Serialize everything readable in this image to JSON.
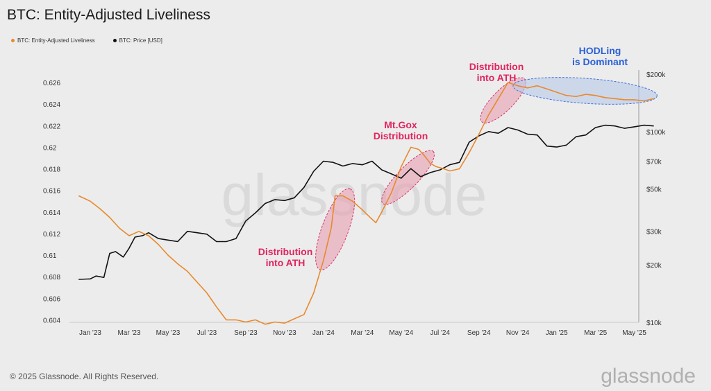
{
  "page": {
    "title": "BTC: Entity-Adjusted Liveliness",
    "copyright": "© 2025 Glassnode. All Rights Reserved.",
    "brand": "glassnode",
    "watermark": "glassnode"
  },
  "colors": {
    "liveliness": "#e8892d",
    "price": "#111111",
    "highlight_fill": "#e7a0b0",
    "highlight_stroke": "#d8336a",
    "hodl_fill": "#b9c9ea",
    "hodl_stroke": "#3a6fd8",
    "annotation_red": "#e0245e",
    "annotation_blue": "#2a5fd8"
  },
  "chart_data": {
    "type": "line",
    "title": "BTC: Entity-Adjusted Liveliness",
    "legend": [
      "BTC: Entity-Adjusted Liveliness",
      "BTC: Price [USD]"
    ],
    "x_ticks": [
      "Jan '23",
      "Mar '23",
      "May '23",
      "Jul '23",
      "Sep '23",
      "Nov '23",
      "Jan '24",
      "Mar '24",
      "May '24",
      "Jul '24",
      "Sep '24",
      "Nov '24",
      "Jan '25",
      "Mar '25",
      "May '25"
    ],
    "x_range_months": [
      0,
      29.3
    ],
    "y_left": {
      "label": "",
      "range": [
        0.603,
        0.626
      ],
      "ticks": [
        "0.604",
        "0.606",
        "0.608",
        "0.61",
        "0.612",
        "0.614",
        "0.616",
        "0.618",
        "0.62",
        "0.622",
        "0.624",
        "0.626"
      ]
    },
    "y_right": {
      "label": "",
      "scale": "log",
      "range": [
        10000,
        200000
      ],
      "ticks": [
        "$10k",
        "$20k",
        "$30k",
        "$50k",
        "$70k",
        "$100k",
        "$200k"
      ]
    },
    "series": [
      {
        "name": "BTC: Entity-Adjusted Liveliness",
        "axis": "left",
        "x": [
          -0.6,
          0.0,
          0.5,
          1.0,
          1.5,
          2.0,
          2.5,
          3.0,
          3.5,
          4.0,
          4.5,
          5.0,
          5.5,
          6.0,
          6.5,
          7.0,
          7.5,
          8.0,
          8.5,
          9.0,
          9.5,
          10.0,
          10.5,
          11.0,
          11.5,
          12.0,
          12.4,
          12.6,
          13.0,
          13.5,
          14.0,
          14.4,
          14.7,
          15.0,
          15.5,
          16.0,
          16.5,
          16.9,
          17.2,
          17.5,
          17.8,
          18.2,
          18.5,
          19.0,
          19.5,
          20.0,
          20.5,
          21.0,
          21.5,
          22.0,
          22.5,
          23.0,
          23.5,
          24.0,
          24.5,
          25.0,
          25.5,
          26.0,
          26.5,
          27.0,
          27.5,
          28.0,
          28.5,
          29.0
        ],
        "values": [
          0.6155,
          0.615,
          0.6143,
          0.6135,
          0.6125,
          0.6118,
          0.6122,
          0.6118,
          0.611,
          0.61,
          0.6092,
          0.6085,
          0.6075,
          0.6065,
          0.6052,
          0.604,
          0.604,
          0.6038,
          0.604,
          0.6036,
          0.6038,
          0.6037,
          0.6041,
          0.6045,
          0.6065,
          0.6095,
          0.6125,
          0.6155,
          0.6155,
          0.615,
          0.6142,
          0.6135,
          0.613,
          0.614,
          0.6158,
          0.6182,
          0.62,
          0.6198,
          0.6192,
          0.6185,
          0.6182,
          0.618,
          0.6178,
          0.618,
          0.6195,
          0.6212,
          0.623,
          0.6245,
          0.626,
          0.6257,
          0.6255,
          0.6257,
          0.6254,
          0.6251,
          0.6248,
          0.6247,
          0.6249,
          0.6248,
          0.6246,
          0.6245,
          0.6244,
          0.6244,
          0.6243,
          0.6245
        ]
      },
      {
        "name": "BTC: Price [USD]",
        "axis": "right",
        "x": [
          -0.6,
          0.0,
          0.3,
          0.7,
          1.0,
          1.3,
          1.7,
          2.0,
          2.3,
          2.7,
          3.0,
          3.5,
          4.0,
          4.5,
          5.0,
          5.5,
          6.0,
          6.5,
          7.0,
          7.5,
          8.0,
          8.5,
          9.0,
          9.5,
          10.0,
          10.5,
          11.0,
          11.5,
          12.0,
          12.5,
          13.0,
          13.5,
          14.0,
          14.5,
          15.0,
          15.5,
          16.0,
          16.5,
          17.0,
          17.5,
          18.0,
          18.5,
          19.0,
          19.5,
          20.0,
          20.5,
          21.0,
          21.5,
          22.0,
          22.5,
          23.0,
          23.5,
          24.0,
          24.5,
          25.0,
          25.5,
          26.0,
          26.5,
          27.0,
          27.5,
          28.0,
          28.5,
          29.0
        ],
        "values": [
          16800,
          16900,
          17500,
          17200,
          23000,
          23500,
          22000,
          24500,
          28000,
          28500,
          29500,
          27500,
          27000,
          26500,
          30000,
          29500,
          29000,
          26500,
          26500,
          27500,
          34000,
          37500,
          42000,
          44000,
          43500,
          45000,
          51000,
          62000,
          70000,
          69000,
          66000,
          68000,
          67000,
          70000,
          63000,
          60000,
          57000,
          64000,
          58000,
          61000,
          63000,
          67000,
          69000,
          88000,
          95000,
          100000,
          98000,
          105000,
          102000,
          97000,
          96000,
          84000,
          83000,
          85000,
          94000,
          96000,
          105000,
          108000,
          107000,
          104000,
          106000,
          108000,
          107000
        ]
      }
    ],
    "annotations": [
      {
        "text": [
          "Distribution",
          "into ATH"
        ],
        "style": "red",
        "range_x": [
          11.0,
          13.2
        ]
      },
      {
        "text": [
          "Mt.Gox",
          "Distribution"
        ],
        "style": "red",
        "range_x": [
          15.4,
          17.4
        ]
      },
      {
        "text": [
          "Distribution",
          "into ATH"
        ],
        "style": "red",
        "range_x": [
          20.0,
          22.0
        ]
      },
      {
        "text": [
          "HODLing",
          "is Dominant"
        ],
        "style": "blue",
        "range_x": [
          22.0,
          29.0
        ]
      }
    ]
  }
}
